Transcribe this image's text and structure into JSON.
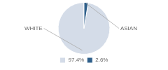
{
  "chart_data": {
    "type": "pie",
    "categories": [
      "WHITE",
      "ASIAN"
    ],
    "values": [
      97.4,
      2.6
    ],
    "value_labels": [
      "97.4%",
      "2.6%"
    ],
    "colors": [
      "#d4dce8",
      "#2e5f8a"
    ],
    "legend": "bottom"
  }
}
